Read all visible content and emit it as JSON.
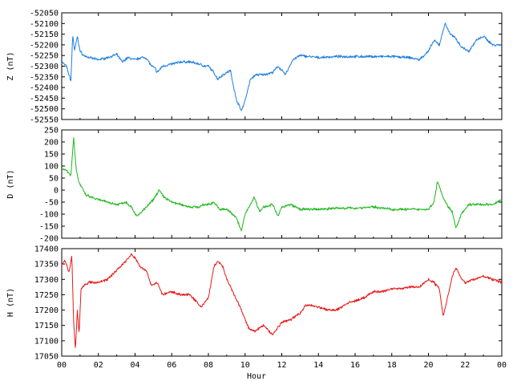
{
  "chart_data": [
    {
      "type": "line",
      "ylabel": "Z (nT)",
      "xlim": [
        0,
        24
      ],
      "ylim": [
        -52550,
        -52050
      ],
      "yticks": [
        -52050,
        -52100,
        -52150,
        -52200,
        -52250,
        -52300,
        -52350,
        -52400,
        -52450,
        -52500,
        -52550
      ],
      "color": "#1f7fe0",
      "series": [
        {
          "x": [
            0,
            0.25,
            0.5,
            0.6,
            0.7,
            0.85,
            1.0,
            1.2,
            1.5,
            2.0,
            2.5,
            3.0,
            3.3,
            3.6,
            4.0,
            4.3,
            4.6,
            4.9,
            5.1,
            5.2,
            5.5,
            6.0,
            6.5,
            7.0,
            7.5,
            7.8,
            8.0,
            8.3,
            8.5,
            8.8,
            9.2,
            9.5,
            9.8,
            10.0,
            10.3,
            10.6,
            11.0,
            11.5,
            11.8,
            12.2,
            12.6,
            13.0,
            13.5,
            14.0,
            15.0,
            16.0,
            17.0,
            18.0,
            19.0,
            19.5,
            20.0,
            20.3,
            20.6,
            20.9,
            21.2,
            21.5,
            21.8,
            22.2,
            22.6,
            23.0,
            23.5,
            24.0
          ],
          "values": [
            -52280,
            -52300,
            -52370,
            -52150,
            -52230,
            -52160,
            -52230,
            -52250,
            -52260,
            -52270,
            -52260,
            -52245,
            -52280,
            -52260,
            -52270,
            -52260,
            -52260,
            -52300,
            -52310,
            -52330,
            -52300,
            -52290,
            -52280,
            -52280,
            -52290,
            -52300,
            -52300,
            -52330,
            -52360,
            -52340,
            -52320,
            -52450,
            -52510,
            -52460,
            -52360,
            -52340,
            -52340,
            -52330,
            -52300,
            -52340,
            -52270,
            -52250,
            -52255,
            -52260,
            -52255,
            -52255,
            -52255,
            -52255,
            -52260,
            -52270,
            -52230,
            -52180,
            -52200,
            -52100,
            -52150,
            -52170,
            -52210,
            -52230,
            -52180,
            -52160,
            -52200,
            -52200
          ]
        }
      ]
    },
    {
      "type": "line",
      "ylabel": "D (nT)",
      "xlim": [
        0,
        24
      ],
      "ylim": [
        -200,
        250
      ],
      "yticks": [
        250,
        200,
        150,
        100,
        50,
        0,
        -50,
        -100,
        -150,
        -200
      ],
      "color": "#1fb81f",
      "series": [
        {
          "x": [
            0,
            0.3,
            0.5,
            0.65,
            0.8,
            0.95,
            1.1,
            1.3,
            1.6,
            2.0,
            2.5,
            3.0,
            3.5,
            3.8,
            4.1,
            4.5,
            5.0,
            5.3,
            5.6,
            6.0,
            6.5,
            7.0,
            7.5,
            7.8,
            8.0,
            8.3,
            8.6,
            9.0,
            9.5,
            9.8,
            10.0,
            10.5,
            10.8,
            11.0,
            11.5,
            11.8,
            12.0,
            12.5,
            13.0,
            13.5,
            14.0,
            15.0,
            16.0,
            17.0,
            18.0,
            19.0,
            19.5,
            20.0,
            20.3,
            20.5,
            20.8,
            21.0,
            21.3,
            21.5,
            21.8,
            22.2,
            22.6,
            23.0,
            23.5,
            24.0
          ],
          "values": [
            90,
            80,
            60,
            220,
            80,
            30,
            10,
            -20,
            -30,
            -40,
            -50,
            -60,
            -50,
            -70,
            -110,
            -80,
            -40,
            0,
            -30,
            -50,
            -60,
            -70,
            -70,
            -60,
            -60,
            -50,
            -80,
            -80,
            -110,
            -170,
            -100,
            -30,
            -90,
            -70,
            -60,
            -110,
            -70,
            -60,
            -80,
            -80,
            -80,
            -75,
            -75,
            -70,
            -80,
            -80,
            -80,
            -80,
            -50,
            40,
            -30,
            -60,
            -90,
            -160,
            -100,
            -60,
            -60,
            -60,
            -60,
            -40
          ]
        }
      ]
    },
    {
      "type": "line",
      "ylabel": "H (nT)",
      "xlim": [
        0,
        24
      ],
      "ylim": [
        17050,
        17400
      ],
      "yticks": [
        17400,
        17350,
        17300,
        17250,
        17200,
        17150,
        17100,
        17050
      ],
      "color": "#e81818",
      "series": [
        {
          "x": [
            0,
            0.2,
            0.4,
            0.55,
            0.65,
            0.75,
            0.85,
            0.95,
            1.05,
            1.2,
            1.5,
            2.0,
            2.5,
            3.0,
            3.5,
            3.8,
            4.0,
            4.3,
            4.6,
            4.9,
            5.2,
            5.5,
            6.0,
            6.5,
            7.0,
            7.3,
            7.6,
            8.0,
            8.3,
            8.5,
            8.8,
            9.0,
            9.4,
            9.8,
            10.2,
            10.5,
            11.0,
            11.5,
            12.0,
            12.5,
            13.0,
            13.3,
            13.7,
            14.0,
            14.5,
            15.0,
            15.5,
            16.0,
            16.5,
            17.0,
            17.5,
            18.0,
            18.5,
            19.0,
            19.5,
            20.0,
            20.3,
            20.6,
            20.8,
            21.0,
            21.3,
            21.5,
            21.8,
            22.0,
            22.5,
            23.0,
            23.5,
            24.0
          ],
          "values": [
            17350,
            17360,
            17320,
            17380,
            17160,
            17070,
            17200,
            17120,
            17270,
            17280,
            17290,
            17290,
            17300,
            17330,
            17360,
            17380,
            17370,
            17340,
            17330,
            17280,
            17290,
            17250,
            17260,
            17250,
            17250,
            17230,
            17210,
            17240,
            17340,
            17360,
            17340,
            17300,
            17250,
            17200,
            17140,
            17130,
            17150,
            17120,
            17160,
            17170,
            17190,
            17215,
            17215,
            17210,
            17200,
            17200,
            17220,
            17230,
            17240,
            17260,
            17260,
            17270,
            17270,
            17275,
            17275,
            17300,
            17290,
            17270,
            17180,
            17230,
            17310,
            17340,
            17300,
            17290,
            17300,
            17310,
            17300,
            17290
          ]
        }
      ]
    }
  ],
  "xticks": [
    "00",
    "02",
    "04",
    "06",
    "08",
    "10",
    "12",
    "14",
    "16",
    "18",
    "20",
    "22",
    "00"
  ],
  "xlabel": "Hour"
}
